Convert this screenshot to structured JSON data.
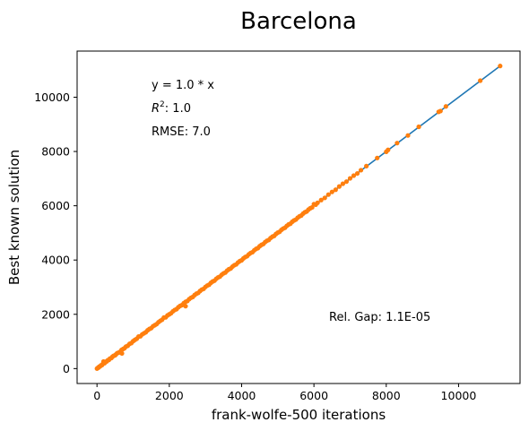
{
  "chart_data": {
    "type": "scatter",
    "title": "Barcelona",
    "xlabel": "frank-wolfe-500 iterations",
    "ylabel": "Best known solution",
    "xlim": [
      -550,
      11700
    ],
    "ylim": [
      -550,
      11700
    ],
    "xticks": [
      0,
      2000,
      4000,
      6000,
      8000,
      10000
    ],
    "yticks": [
      0,
      2000,
      4000,
      6000,
      8000,
      10000
    ],
    "grid": false,
    "fit_line": {
      "slope": 1.0,
      "intercept": 0,
      "x_range": [
        0,
        11150
      ],
      "color": "#1f77b4"
    },
    "point_color": "#ff7f0e",
    "annotations": {
      "equation": "y = 1.0 * x",
      "r2_label": "R",
      "r2_sup": "2",
      "r2_value": ":  1.0",
      "rmse": "RMSE: 7.0",
      "rel_gap": "Rel. Gap: 1.1E-05"
    },
    "points": [
      [
        0,
        0
      ],
      [
        20,
        25
      ],
      [
        40,
        35
      ],
      [
        60,
        70
      ],
      [
        85,
        80
      ],
      [
        110,
        120
      ],
      [
        140,
        130
      ],
      [
        160,
        170
      ],
      [
        180,
        260
      ],
      [
        210,
        200
      ],
      [
        240,
        250
      ],
      [
        270,
        265
      ],
      [
        300,
        310
      ],
      [
        330,
        320
      ],
      [
        360,
        370
      ],
      [
        400,
        390
      ],
      [
        430,
        440
      ],
      [
        460,
        470
      ],
      [
        500,
        490
      ],
      [
        530,
        530
      ],
      [
        560,
        570
      ],
      [
        600,
        590
      ],
      [
        640,
        620
      ],
      [
        680,
        690
      ],
      [
        690,
        560
      ],
      [
        720,
        720
      ],
      [
        760,
        750
      ],
      [
        800,
        810
      ],
      [
        850,
        840
      ],
      [
        900,
        910
      ],
      [
        950,
        940
      ],
      [
        1000,
        1010
      ],
      [
        1050,
        1060
      ],
      [
        1100,
        1100
      ],
      [
        1150,
        1180
      ],
      [
        1200,
        1190
      ],
      [
        1250,
        1260
      ],
      [
        1300,
        1300
      ],
      [
        1350,
        1340
      ],
      [
        1400,
        1410
      ],
      [
        1450,
        1460
      ],
      [
        1500,
        1490
      ],
      [
        1550,
        1560
      ],
      [
        1600,
        1600
      ],
      [
        1650,
        1640
      ],
      [
        1700,
        1710
      ],
      [
        1750,
        1760
      ],
      [
        1800,
        1800
      ],
      [
        1850,
        1880
      ],
      [
        1900,
        1890
      ],
      [
        1950,
        1960
      ],
      [
        2000,
        2000
      ],
      [
        2050,
        2040
      ],
      [
        2100,
        2110
      ],
      [
        2150,
        2160
      ],
      [
        2200,
        2190
      ],
      [
        2250,
        2260
      ],
      [
        2300,
        2310
      ],
      [
        2350,
        2340
      ],
      [
        2400,
        2410
      ],
      [
        2450,
        2300
      ],
      [
        2450,
        2460
      ],
      [
        2500,
        2490
      ],
      [
        2550,
        2560
      ],
      [
        2600,
        2610
      ],
      [
        2650,
        2640
      ],
      [
        2700,
        2710
      ],
      [
        2750,
        2760
      ],
      [
        2800,
        2790
      ],
      [
        2850,
        2860
      ],
      [
        2900,
        2910
      ],
      [
        2950,
        2940
      ],
      [
        3000,
        3010
      ],
      [
        3050,
        3060
      ],
      [
        3100,
        3090
      ],
      [
        3150,
        3160
      ],
      [
        3200,
        3210
      ],
      [
        3250,
        3240
      ],
      [
        3300,
        3310
      ],
      [
        3350,
        3360
      ],
      [
        3400,
        3390
      ],
      [
        3450,
        3460
      ],
      [
        3500,
        3510
      ],
      [
        3550,
        3540
      ],
      [
        3600,
        3610
      ],
      [
        3650,
        3660
      ],
      [
        3700,
        3690
      ],
      [
        3750,
        3760
      ],
      [
        3800,
        3810
      ],
      [
        3850,
        3840
      ],
      [
        3900,
        3910
      ],
      [
        3950,
        3960
      ],
      [
        4000,
        3990
      ],
      [
        4050,
        4060
      ],
      [
        4100,
        4110
      ],
      [
        4150,
        4140
      ],
      [
        4200,
        4210
      ],
      [
        4250,
        4260
      ],
      [
        4300,
        4290
      ],
      [
        4350,
        4360
      ],
      [
        4400,
        4410
      ],
      [
        4450,
        4440
      ],
      [
        4500,
        4510
      ],
      [
        4550,
        4560
      ],
      [
        4600,
        4590
      ],
      [
        4650,
        4660
      ],
      [
        4700,
        4710
      ],
      [
        4750,
        4740
      ],
      [
        4800,
        4810
      ],
      [
        4850,
        4860
      ],
      [
        4900,
        4890
      ],
      [
        4950,
        4960
      ],
      [
        5000,
        5010
      ],
      [
        5050,
        5040
      ],
      [
        5100,
        5110
      ],
      [
        5150,
        5160
      ],
      [
        5200,
        5190
      ],
      [
        5250,
        5260
      ],
      [
        5300,
        5310
      ],
      [
        5350,
        5340
      ],
      [
        5400,
        5410
      ],
      [
        5450,
        5460
      ],
      [
        5500,
        5490
      ],
      [
        5550,
        5560
      ],
      [
        5600,
        5610
      ],
      [
        5650,
        5640
      ],
      [
        5700,
        5710
      ],
      [
        5750,
        5760
      ],
      [
        5800,
        5790
      ],
      [
        5850,
        5860
      ],
      [
        5900,
        5910
      ],
      [
        5950,
        5940
      ],
      [
        6000,
        6060
      ],
      [
        6050,
        6040
      ],
      [
        6100,
        6110
      ],
      [
        6200,
        6210
      ],
      [
        6300,
        6290
      ],
      [
        6400,
        6410
      ],
      [
        6500,
        6510
      ],
      [
        6600,
        6590
      ],
      [
        6700,
        6710
      ],
      [
        6800,
        6810
      ],
      [
        6900,
        6890
      ],
      [
        7000,
        7010
      ],
      [
        7100,
        7110
      ],
      [
        7200,
        7190
      ],
      [
        7300,
        7310
      ],
      [
        7450,
        7460
      ],
      [
        7750,
        7760
      ],
      [
        8000,
        7990
      ],
      [
        8050,
        8060
      ],
      [
        8300,
        8310
      ],
      [
        8600,
        8590
      ],
      [
        8900,
        8910
      ],
      [
        9450,
        9460
      ],
      [
        9500,
        9490
      ],
      [
        9650,
        9660
      ],
      [
        10600,
        10610
      ],
      [
        11150,
        11150
      ]
    ]
  }
}
